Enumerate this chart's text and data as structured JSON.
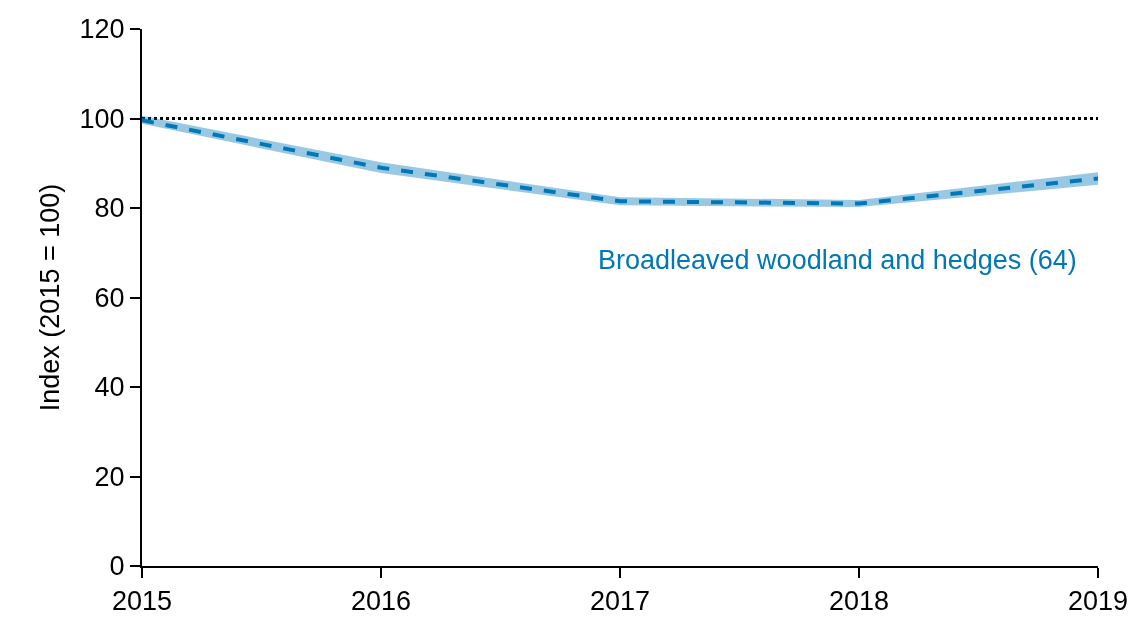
{
  "chart_data": {
    "type": "line",
    "ylabel": "Index (2015 = 100)",
    "x": [
      2015,
      2016,
      2017,
      2018,
      2019
    ],
    "series": [
      {
        "name": "Broadleaved woodland and hedges (64)",
        "color": "#0077b6",
        "values": [
          99.6,
          89,
          81.5,
          81,
          86.6
        ],
        "lower": [
          98.8,
          87.8,
          80.6,
          80.2,
          85.2
        ],
        "upper": [
          100.6,
          90.2,
          82.4,
          81.8,
          88
        ]
      }
    ],
    "xlim": [
      2015,
      2019
    ],
    "xticks": [
      2015,
      2016,
      2017,
      2018,
      2019
    ],
    "ylim": [
      0,
      120
    ],
    "yticks": [
      0,
      20,
      40,
      60,
      80,
      100,
      120
    ],
    "ref_lines": [
      {
        "axis": "y",
        "value": 100,
        "color": "#000000",
        "line_style": "dotted"
      }
    ],
    "line_style": "dashed",
    "marker": "none",
    "grid": false,
    "legend": false
  }
}
